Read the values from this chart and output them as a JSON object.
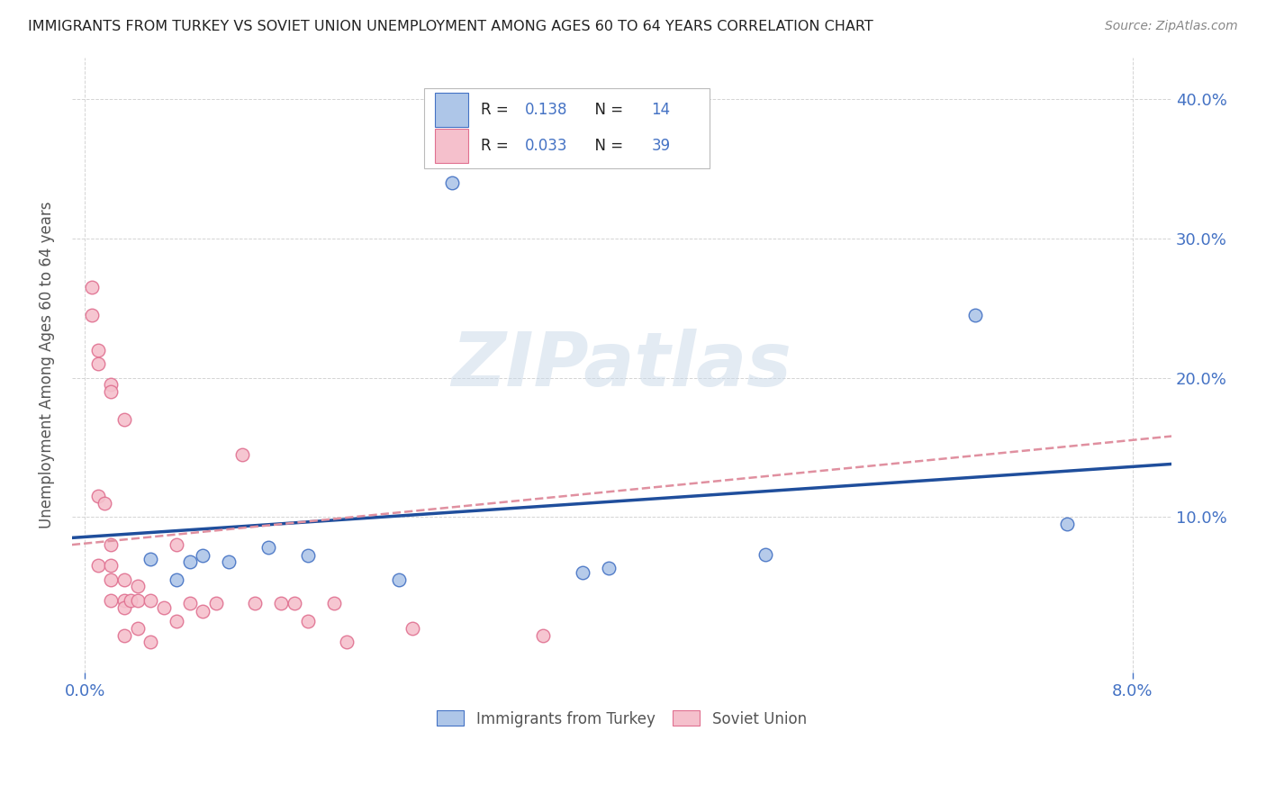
{
  "title": "IMMIGRANTS FROM TURKEY VS SOVIET UNION UNEMPLOYMENT AMONG AGES 60 TO 64 YEARS CORRELATION CHART",
  "source": "Source: ZipAtlas.com",
  "ylabel_text": "Unemployment Among Ages 60 to 64 years",
  "xlim": [
    -0.001,
    0.083
  ],
  "ylim": [
    -0.012,
    0.43
  ],
  "turkey_x": [
    0.028,
    0.005,
    0.008,
    0.009,
    0.011,
    0.014,
    0.007,
    0.017,
    0.024,
    0.038,
    0.04,
    0.052,
    0.075,
    0.068
  ],
  "turkey_y": [
    0.34,
    0.07,
    0.068,
    0.072,
    0.068,
    0.078,
    0.055,
    0.072,
    0.055,
    0.06,
    0.063,
    0.073,
    0.095,
    0.245
  ],
  "soviet_x": [
    0.0005,
    0.0005,
    0.001,
    0.001,
    0.001,
    0.001,
    0.0015,
    0.002,
    0.002,
    0.002,
    0.002,
    0.002,
    0.002,
    0.003,
    0.003,
    0.003,
    0.003,
    0.003,
    0.0035,
    0.004,
    0.004,
    0.004,
    0.005,
    0.005,
    0.006,
    0.007,
    0.007,
    0.008,
    0.009,
    0.01,
    0.012,
    0.013,
    0.015,
    0.016,
    0.017,
    0.019,
    0.02,
    0.025,
    0.035
  ],
  "soviet_y": [
    0.265,
    0.245,
    0.22,
    0.21,
    0.115,
    0.065,
    0.11,
    0.195,
    0.19,
    0.08,
    0.065,
    0.055,
    0.04,
    0.17,
    0.055,
    0.04,
    0.035,
    0.015,
    0.04,
    0.05,
    0.04,
    0.02,
    0.04,
    0.01,
    0.035,
    0.08,
    0.025,
    0.038,
    0.032,
    0.038,
    0.145,
    0.038,
    0.038,
    0.038,
    0.025,
    0.038,
    0.01,
    0.02,
    0.015
  ],
  "turkey_color": "#aec6e8",
  "turkey_edge_color": "#4472c4",
  "soviet_color": "#f5c0cc",
  "soviet_edge_color": "#e07090",
  "turkey_line_color": "#1f4e9c",
  "soviet_line_color": "#e090a0",
  "turkey_trend_x0": 0.0,
  "turkey_trend_y0": 0.085,
  "turkey_trend_x1": 0.083,
  "turkey_trend_y1": 0.138,
  "soviet_trend_x0": 0.0,
  "soviet_trend_y0": 0.08,
  "soviet_trend_x1": 0.083,
  "soviet_trend_y1": 0.158,
  "turkey_R": 0.138,
  "turkey_N": 14,
  "soviet_R": 0.033,
  "soviet_N": 39,
  "watermark": "ZIPatlas",
  "background_color": "#ffffff",
  "grid_color": "#d0d0d0",
  "title_color": "#222222",
  "axis_label_color": "#555555",
  "tick_color": "#4472c4",
  "marker_size": 110,
  "r_label_color": "#4472c4",
  "n_label_color": "#4472c4"
}
